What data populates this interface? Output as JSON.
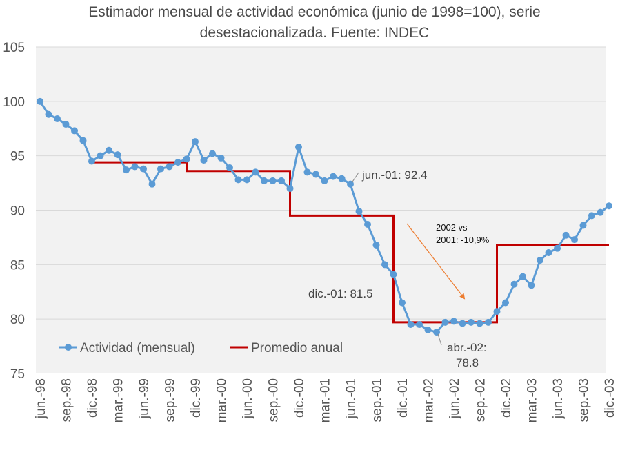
{
  "chart_data": {
    "type": "line",
    "title_line1": "Estimador mensual de actividad económica (junio de 1998=100), serie",
    "title_line2": "desestacionalizada. Fuente: INDEC",
    "ylim": [
      75,
      105
    ],
    "y_ticks": [
      "75",
      "80",
      "85",
      "90",
      "95",
      "100",
      "105"
    ],
    "x_tick_labels": [
      "jun.-98",
      "sep.-98",
      "dic.-98",
      "mar.-99",
      "jun.-99",
      "sep.-99",
      "dic.-99",
      "mar.-00",
      "jun.-00",
      "sep.-00",
      "dic.-00",
      "mar.-01",
      "jun.-01",
      "sep.-01",
      "dic.-01",
      "mar.-02",
      "jun.-02",
      "sep.-02",
      "dic.-02",
      "mar.-03",
      "jun.-03",
      "sep.-03",
      "dic.-03"
    ],
    "grid": true,
    "legend_position": "bottom-left",
    "colors": {
      "actividad": "#5b9bd5",
      "promedio": "#c00000",
      "arrow": "#ed7d31",
      "grid": "#d9d9d9",
      "plot_bg": "#f2f2f2"
    },
    "series": [
      {
        "name": "Actividad (mensual)",
        "values": [
          100.0,
          98.8,
          98.4,
          97.9,
          97.3,
          96.4,
          94.5,
          95.0,
          95.5,
          95.1,
          93.7,
          94.0,
          93.8,
          92.4,
          93.8,
          94.0,
          94.4,
          94.7,
          96.3,
          94.6,
          95.2,
          94.8,
          93.9,
          92.8,
          92.8,
          93.5,
          92.7,
          92.7,
          92.7,
          92.0,
          95.8,
          93.5,
          93.3,
          92.7,
          93.1,
          92.9,
          92.4,
          89.9,
          88.7,
          86.8,
          85.0,
          84.1,
          81.5,
          79.5,
          79.5,
          79.0,
          78.8,
          79.7,
          79.8,
          79.6,
          79.7,
          79.6,
          79.7,
          80.7,
          81.5,
          83.2,
          83.9,
          83.1,
          85.4,
          86.1,
          86.5,
          87.7,
          87.3,
          88.6,
          89.5,
          89.8,
          90.4
        ]
      },
      {
        "name": "Promedio anual",
        "steps": [
          {
            "start": 6,
            "end": 17,
            "value": 94.4
          },
          {
            "start": 17,
            "end": 29,
            "value": 93.6
          },
          {
            "start": 29,
            "end": 41,
            "value": 89.5
          },
          {
            "start": 41,
            "end": 53,
            "value": 79.7
          },
          {
            "start": 53,
            "end": 66,
            "value": 86.8
          }
        ]
      }
    ],
    "annotations": [
      {
        "text": "jun.-01: 92.4",
        "index": 36,
        "value": 92.4
      },
      {
        "text": "dic.-01: 81.5",
        "index": 42,
        "value": 81.5
      },
      {
        "text_line1": "abr.-02:",
        "text_line2": "78.8",
        "index": 46,
        "value": 78.8
      },
      {
        "text_line1": "2002 vs",
        "text_line2": "2001: -10,9%"
      }
    ]
  }
}
